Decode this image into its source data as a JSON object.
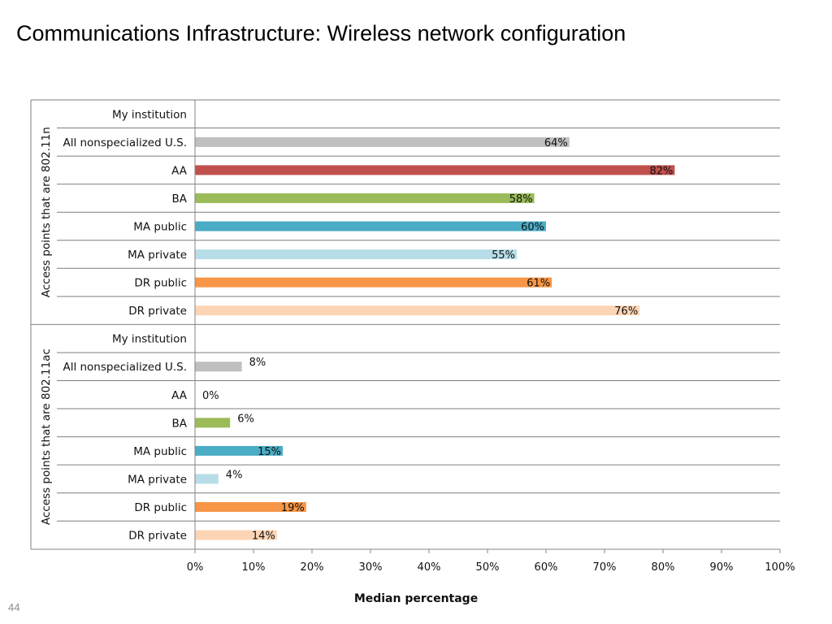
{
  "page": {
    "title": "Communications Infrastructure: Wireless network configuration",
    "page_number": "44"
  },
  "colors": {
    "All nonspecialized U.S.": "#bfbfbf",
    "AA": "#c0504d",
    "BA": "#9bbb59",
    "MA public": "#4bacc6",
    "MA private": "#b7dee8",
    "DR public": "#f79646",
    "DR private": "#fcd5b5",
    "gridline": "#7f7f7f",
    "axis": "#868686"
  },
  "chart_data": {
    "type": "bar",
    "orientation": "horizontal",
    "xlabel": "Median percentage",
    "xlim": [
      0,
      100
    ],
    "x_ticks": [
      "0%",
      "10%",
      "20%",
      "30%",
      "40%",
      "50%",
      "60%",
      "70%",
      "80%",
      "90%",
      "100%"
    ],
    "grid": false,
    "groups": [
      {
        "name": "Access points that are 802.11n",
        "categories": [
          "My institution",
          "All nonspecialized U.S.",
          "AA",
          "BA",
          "MA public",
          "MA private",
          "DR public",
          "DR private"
        ],
        "values": [
          null,
          64,
          82,
          58,
          60,
          55,
          61,
          76
        ],
        "labels": [
          "",
          "64%",
          "82%",
          "58%",
          "60%",
          "55%",
          "61%",
          "76%"
        ]
      },
      {
        "name": "Access points that are 802.11ac",
        "categories": [
          "My institution",
          "All nonspecialized U.S.",
          "AA",
          "BA",
          "MA public",
          "MA private",
          "DR public",
          "DR private"
        ],
        "values": [
          null,
          8,
          0,
          6,
          15,
          4,
          19,
          14
        ],
        "labels": [
          "",
          "8%",
          "0%",
          "6%",
          "15%",
          "4%",
          "19%",
          "14%"
        ]
      }
    ]
  }
}
